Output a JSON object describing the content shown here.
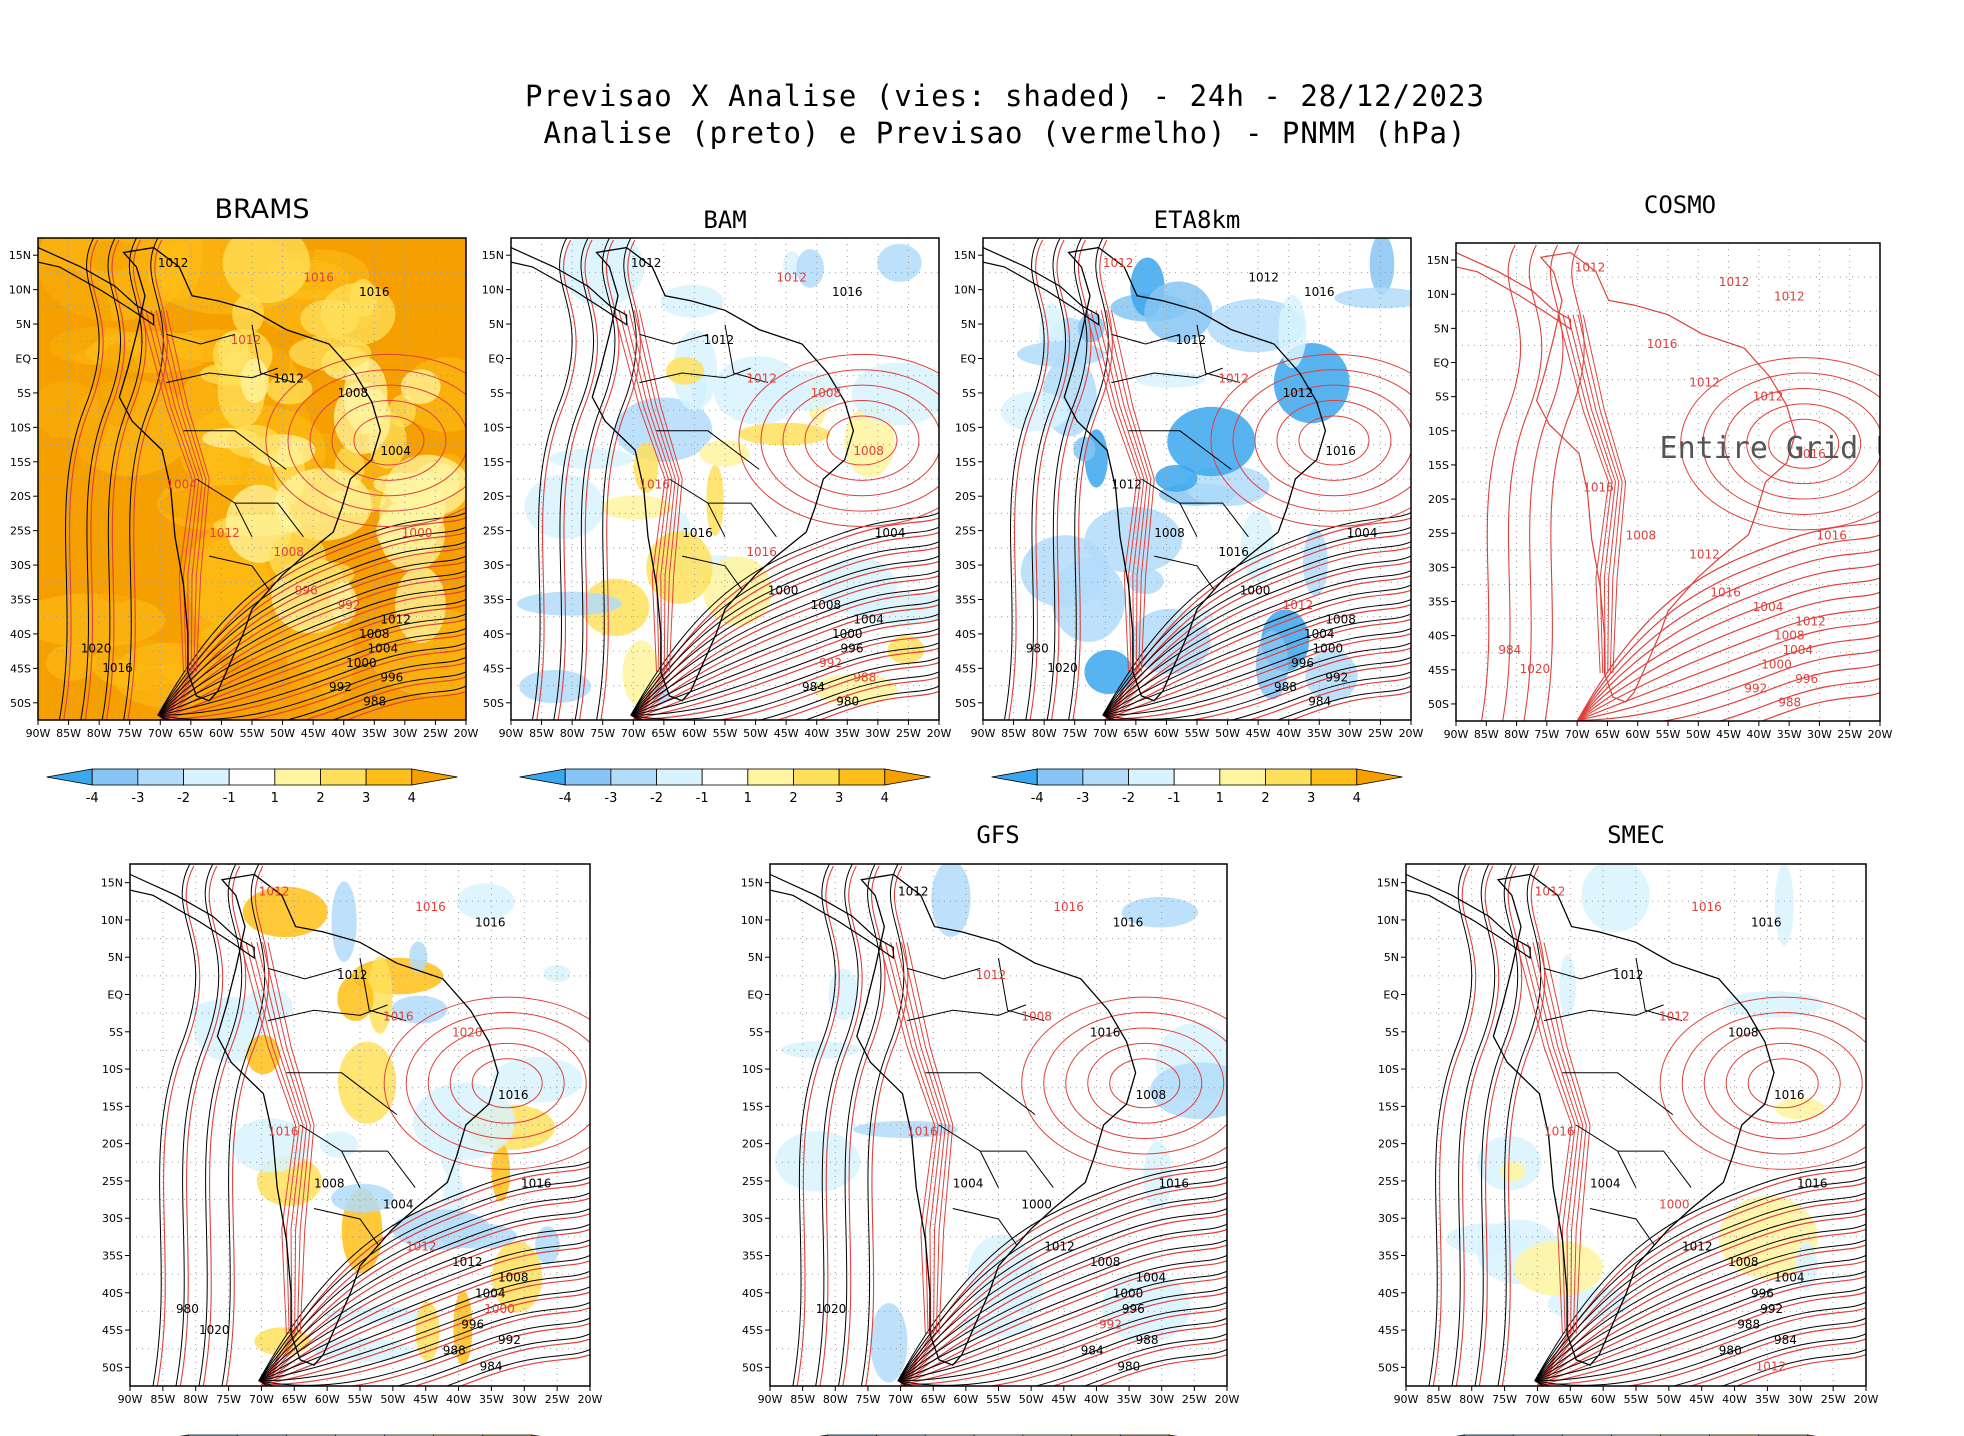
{
  "title": {
    "line1": "Previsao X Analise (vies: shaded) - 24h - 28/12/2023",
    "line2": "Analise (preto) e Previsao (vermelho) - PNMM (hPa)"
  },
  "axes": {
    "lat_labels": [
      "15N",
      "10N",
      "5N",
      "EQ",
      "5S",
      "10S",
      "15S",
      "20S",
      "25S",
      "30S",
      "35S",
      "40S",
      "45S",
      "50S"
    ],
    "lon_labels": [
      "90W",
      "85W",
      "80W",
      "75W",
      "70W",
      "65W",
      "60W",
      "55W",
      "50W",
      "45W",
      "40W",
      "35W",
      "30W",
      "25W",
      "20W"
    ]
  },
  "colorbar": {
    "labels": [
      "-4",
      "-3",
      "-2",
      "-1",
      "1",
      "2",
      "3",
      "4"
    ],
    "colors": [
      "#3aa7ee",
      "#86c5f5",
      "#b2dcfa",
      "#d8f3fe",
      "#ffffff",
      "#fff5a0",
      "#ffe05a",
      "#ffbf18",
      "#f5a000"
    ]
  },
  "legend_colors": {
    "analysis": "#000000",
    "forecast": "#e0403b"
  },
  "panels": [
    {
      "id": "brams",
      "title": "BRAMS",
      "bias": "warm",
      "labels": [
        {
          "t": "1012",
          "c": "a"
        },
        {
          "t": "1016",
          "c": "f"
        },
        {
          "t": "1016",
          "c": "a"
        },
        {
          "t": "1012",
          "c": "f"
        },
        {
          "t": "1012",
          "c": "a"
        },
        {
          "t": "1008",
          "c": "a"
        },
        {
          "t": "1004",
          "c": "a"
        },
        {
          "t": "1004",
          "c": "f"
        },
        {
          "t": "1012",
          "c": "f"
        },
        {
          "t": "1008",
          "c": "f"
        },
        {
          "t": "1000",
          "c": "f"
        },
        {
          "t": "996",
          "c": "f"
        },
        {
          "t": "992",
          "c": "f"
        },
        {
          "t": "1012",
          "c": "a"
        },
        {
          "t": "1008",
          "c": "a"
        },
        {
          "t": "1004",
          "c": "a"
        },
        {
          "t": "1000",
          "c": "a"
        },
        {
          "t": "996",
          "c": "a"
        },
        {
          "t": "992",
          "c": "a"
        },
        {
          "t": "988",
          "c": "a"
        },
        {
          "t": "1020",
          "c": "a"
        },
        {
          "t": "1016",
          "c": "a"
        }
      ]
    },
    {
      "id": "bam",
      "title": "BAM",
      "bias": "cool",
      "labels": [
        {
          "t": "1012",
          "c": "a"
        },
        {
          "t": "1012",
          "c": "f"
        },
        {
          "t": "1016",
          "c": "a"
        },
        {
          "t": "1012",
          "c": "a"
        },
        {
          "t": "1012",
          "c": "f"
        },
        {
          "t": "1008",
          "c": "f"
        },
        {
          "t": "1008",
          "c": "f"
        },
        {
          "t": "1016",
          "c": "f"
        },
        {
          "t": "1016",
          "c": "a"
        },
        {
          "t": "1016",
          "c": "f"
        },
        {
          "t": "1004",
          "c": "a"
        },
        {
          "t": "1000",
          "c": "a"
        },
        {
          "t": "1008",
          "c": "a"
        },
        {
          "t": "1004",
          "c": "a"
        },
        {
          "t": "1000",
          "c": "a"
        },
        {
          "t": "996",
          "c": "a"
        },
        {
          "t": "992",
          "c": "f"
        },
        {
          "t": "988",
          "c": "f"
        },
        {
          "t": "984",
          "c": "a"
        },
        {
          "t": "980",
          "c": "a"
        }
      ]
    },
    {
      "id": "eta8km",
      "title": "ETA8km",
      "bias": "cool2",
      "labels": [
        {
          "t": "1012",
          "c": "f"
        },
        {
          "t": "1012",
          "c": "a"
        },
        {
          "t": "1016",
          "c": "a"
        },
        {
          "t": "1012",
          "c": "a"
        },
        {
          "t": "1012",
          "c": "f"
        },
        {
          "t": "1012",
          "c": "a"
        },
        {
          "t": "1016",
          "c": "a"
        },
        {
          "t": "1012",
          "c": "a"
        },
        {
          "t": "1008",
          "c": "a"
        },
        {
          "t": "1016",
          "c": "a"
        },
        {
          "t": "1004",
          "c": "a"
        },
        {
          "t": "1000",
          "c": "a"
        },
        {
          "t": "1012",
          "c": "f"
        },
        {
          "t": "1008",
          "c": "a"
        },
        {
          "t": "1004",
          "c": "a"
        },
        {
          "t": "1000",
          "c": "a"
        },
        {
          "t": "996",
          "c": "a"
        },
        {
          "t": "992",
          "c": "a"
        },
        {
          "t": "988",
          "c": "a"
        },
        {
          "t": "984",
          "c": "a"
        },
        {
          "t": "980",
          "c": "a"
        },
        {
          "t": "1020",
          "c": "a"
        }
      ]
    },
    {
      "id": "cosmo",
      "title": "COSMO",
      "bias": "none",
      "note": "Entire Grid Und",
      "labels": [
        {
          "t": "1012",
          "c": "f"
        },
        {
          "t": "1012",
          "c": "f"
        },
        {
          "t": "1012",
          "c": "f"
        },
        {
          "t": "1016",
          "c": "f"
        },
        {
          "t": "1012",
          "c": "f"
        },
        {
          "t": "1012",
          "c": "f"
        },
        {
          "t": "1016",
          "c": "f"
        },
        {
          "t": "1016",
          "c": "f"
        },
        {
          "t": "1008",
          "c": "f"
        },
        {
          "t": "1012",
          "c": "f"
        },
        {
          "t": "1016",
          "c": "f"
        },
        {
          "t": "1016",
          "c": "f"
        },
        {
          "t": "1004",
          "c": "f"
        },
        {
          "t": "1012",
          "c": "f"
        },
        {
          "t": "1008",
          "c": "f"
        },
        {
          "t": "1004",
          "c": "f"
        },
        {
          "t": "1000",
          "c": "f"
        },
        {
          "t": "996",
          "c": "f"
        },
        {
          "t": "992",
          "c": "f"
        },
        {
          "t": "988",
          "c": "f"
        },
        {
          "t": "984",
          "c": "f"
        },
        {
          "t": "1020",
          "c": "f"
        }
      ]
    },
    {
      "id": "unnamed",
      "title": "",
      "bias": "mixed",
      "labels": [
        {
          "t": "1012",
          "c": "f"
        },
        {
          "t": "1016",
          "c": "f"
        },
        {
          "t": "1016",
          "c": "a"
        },
        {
          "t": "1012",
          "c": "a"
        },
        {
          "t": "1016",
          "c": "f"
        },
        {
          "t": "1020",
          "c": "f"
        },
        {
          "t": "1016",
          "c": "a"
        },
        {
          "t": "1016",
          "c": "f"
        },
        {
          "t": "1008",
          "c": "a"
        },
        {
          "t": "1004",
          "c": "a"
        },
        {
          "t": "1016",
          "c": "a"
        },
        {
          "t": "1012",
          "c": "f"
        },
        {
          "t": "1012",
          "c": "a"
        },
        {
          "t": "1008",
          "c": "a"
        },
        {
          "t": "1004",
          "c": "a"
        },
        {
          "t": "1000",
          "c": "f"
        },
        {
          "t": "996",
          "c": "a"
        },
        {
          "t": "992",
          "c": "a"
        },
        {
          "t": "988",
          "c": "a"
        },
        {
          "t": "984",
          "c": "a"
        },
        {
          "t": "980",
          "c": "a"
        },
        {
          "t": "1020",
          "c": "a"
        }
      ]
    },
    {
      "id": "gfs",
      "title": "GFS",
      "bias": "light",
      "labels": [
        {
          "t": "1012",
          "c": "a"
        },
        {
          "t": "1016",
          "c": "f"
        },
        {
          "t": "1016",
          "c": "a"
        },
        {
          "t": "1012",
          "c": "f"
        },
        {
          "t": "1008",
          "c": "f"
        },
        {
          "t": "1016",
          "c": "a"
        },
        {
          "t": "1008",
          "c": "a"
        },
        {
          "t": "1016",
          "c": "f"
        },
        {
          "t": "1004",
          "c": "a"
        },
        {
          "t": "1000",
          "c": "a"
        },
        {
          "t": "1016",
          "c": "a"
        },
        {
          "t": "1012",
          "c": "a"
        },
        {
          "t": "1008",
          "c": "a"
        },
        {
          "t": "1004",
          "c": "a"
        },
        {
          "t": "1000",
          "c": "a"
        },
        {
          "t": "996",
          "c": "a"
        },
        {
          "t": "992",
          "c": "f"
        },
        {
          "t": "988",
          "c": "a"
        },
        {
          "t": "984",
          "c": "a"
        },
        {
          "t": "980",
          "c": "a"
        },
        {
          "t": "1020",
          "c": "a"
        }
      ]
    },
    {
      "id": "smec",
      "title": "SMEC",
      "bias": "light2",
      "labels": [
        {
          "t": "1012",
          "c": "f"
        },
        {
          "t": "1016",
          "c": "f"
        },
        {
          "t": "1016",
          "c": "a"
        },
        {
          "t": "1012",
          "c": "a"
        },
        {
          "t": "1012",
          "c": "f"
        },
        {
          "t": "1008",
          "c": "a"
        },
        {
          "t": "1016",
          "c": "a"
        },
        {
          "t": "1016",
          "c": "f"
        },
        {
          "t": "1004",
          "c": "a"
        },
        {
          "t": "1000",
          "c": "f"
        },
        {
          "t": "1016",
          "c": "a"
        },
        {
          "t": "1012",
          "c": "a"
        },
        {
          "t": "1008",
          "c": "a"
        },
        {
          "t": "1004",
          "c": "a"
        },
        {
          "t": "996",
          "c": "a"
        },
        {
          "t": "992",
          "c": "a"
        },
        {
          "t": "988",
          "c": "a"
        },
        {
          "t": "984",
          "c": "a"
        },
        {
          "t": "980",
          "c": "a"
        },
        {
          "t": "1012",
          "c": "f"
        }
      ]
    }
  ]
}
